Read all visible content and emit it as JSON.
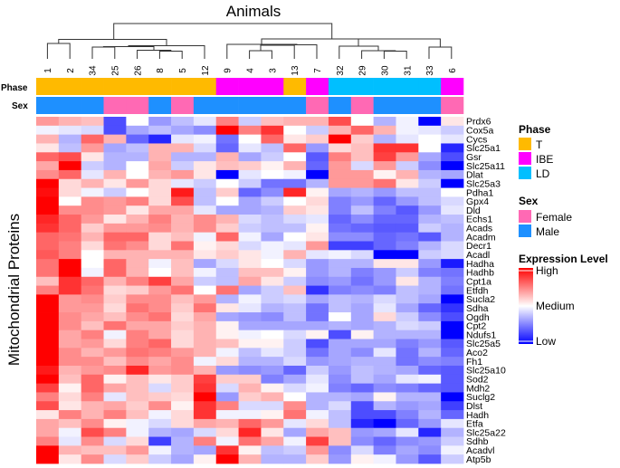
{
  "chart_data": {
    "type": "heatmap",
    "title": "Animals",
    "ylabel": "Mitochondrial Proteins",
    "columns": [
      "1",
      "2",
      "34",
      "25",
      "26",
      "8",
      "5",
      "12",
      "9",
      "4",
      "3",
      "13",
      "7",
      "32",
      "29",
      "30",
      "31",
      "33",
      "6"
    ],
    "annotations": {
      "phase_label": "Phase",
      "sex_label": "Sex",
      "phase": [
        "T",
        "T",
        "T",
        "T",
        "T",
        "T",
        "T",
        "T",
        "IBE",
        "IBE",
        "IBE",
        "T",
        "IBE",
        "LD",
        "LD",
        "LD",
        "LD",
        "LD",
        "IBE"
      ],
      "sex": [
        "Male",
        "Male",
        "Male",
        "Female",
        "Female",
        "Male",
        "Female",
        "Male",
        "Male",
        "Male",
        "Male",
        "Male",
        "Female",
        "Male",
        "Female",
        "Male",
        "Male",
        "Male",
        "Female"
      ]
    },
    "rows": [
      "Prdx6",
      "Cox5a",
      "Cycs",
      "Slc25a1",
      "Gsr",
      "Slc25a11",
      "Dlat",
      "Slc25a3",
      "Pdha1",
      "Gpx4",
      "Dld",
      "Echs1",
      "Acads",
      "Acadm",
      "Decr1",
      "Acadl",
      "Hadha",
      "Hadhb",
      "Cpt1a",
      "Etfdh",
      "Sucla2",
      "Sdha",
      "Ogdh",
      "Cpt2",
      "Ndufs1",
      "Slc25a5",
      "Aco2",
      "Fh1",
      "Slc25a10",
      "Sod2",
      "Mdh2",
      "Suclg2",
      "Dlst",
      "Hadh",
      "Etfa",
      "Slc25a22",
      "Sdhb",
      "Acadvl",
      "Atp5b"
    ],
    "value_range": [
      -1,
      1
    ],
    "values": [
      [
        0.4,
        0.3,
        0.25,
        -0.7,
        0,
        -0.4,
        -0.25,
        -0.1,
        0.5,
        -0.2,
        0.25,
        0.3,
        0.3,
        0.7,
        0,
        -0.3,
        -0.05,
        -1,
        0.1
      ],
      [
        -0.05,
        -0.1,
        -0.15,
        -0.7,
        -0.35,
        -0.25,
        -0.35,
        -0.45,
        1,
        0.5,
        0.8,
        0,
        -0.2,
        0.3,
        0.6,
        0.3,
        -0.05,
        -0.1,
        -0.2
      ],
      [
        0.3,
        -0.3,
        0.6,
        0.3,
        -0.6,
        -0.85,
        -0.1,
        -0.05,
        -0.55,
        0,
        0.6,
        0.1,
        0.2,
        1,
        0.2,
        -0.3,
        -0.1,
        0,
        -0.1
      ],
      [
        0.1,
        -0.25,
        0.4,
        -0.35,
        -0.25,
        0.3,
        0.3,
        -0.15,
        -0.6,
        -0.1,
        -0.25,
        0.6,
        -0.4,
        0.15,
        0.25,
        0.8,
        0.8,
        0,
        -0.85
      ],
      [
        0.6,
        0.7,
        0.1,
        -0.3,
        -0.3,
        0.3,
        -0.3,
        -0.3,
        0.3,
        -0.35,
        -0.2,
        0,
        -0.65,
        0.5,
        0.25,
        0.75,
        0.4,
        -0.35,
        -0.7
      ],
      [
        0.35,
        1,
        -0.2,
        -0.3,
        0,
        0.35,
        -0.2,
        0.1,
        0.25,
        0.2,
        0.05,
        0.3,
        -0.6,
        0.4,
        -0.15,
        0.4,
        -0.2,
        -0.45,
        -1
      ],
      [
        0.45,
        0.6,
        -0.1,
        0.3,
        0,
        0.3,
        0.4,
        0.1,
        -1,
        -0.1,
        0,
        -0.05,
        -1,
        0.4,
        0.4,
        0.05,
        0.3,
        -0.3,
        -0.35
      ],
      [
        1,
        0.15,
        0.3,
        0.1,
        0.4,
        0.15,
        -0.1,
        -0.2,
        0,
        -0.2,
        -0.55,
        -0.55,
        -0.3,
        0.4,
        0.4,
        0.55,
        0.1,
        -0.2,
        -1
      ],
      [
        0.95,
        0.15,
        -0.05,
        -0.2,
        0,
        0.15,
        0.9,
        -0.25,
        0.2,
        -0.6,
        -0.45,
        0.85,
        0.05,
        -0.35,
        -0.3,
        -0.4,
        -0.25,
        -0.25,
        0
      ],
      [
        1,
        0,
        0.45,
        0.4,
        0.5,
        0.15,
        0.7,
        -0.25,
        0,
        -0.35,
        -0.2,
        0,
        0.15,
        -0.5,
        -0.4,
        -0.6,
        -0.4,
        -0.25,
        -0.15
      ],
      [
        1,
        0.45,
        0.45,
        0.4,
        0.1,
        0.35,
        0.35,
        -0.1,
        -0.35,
        -0.35,
        -0.3,
        0.2,
        0.1,
        -0.5,
        -0.25,
        -0.5,
        -0.65,
        -0.4,
        -0.1
      ],
      [
        0.85,
        0.6,
        0.4,
        0.1,
        0.3,
        0.5,
        0.3,
        0.45,
        0.3,
        -0.15,
        -0.25,
        -0.15,
        -0.1,
        -0.6,
        -0.45,
        -0.6,
        -0.6,
        -0.3,
        -0.25
      ],
      [
        0.8,
        0.6,
        0.2,
        0.4,
        0.4,
        0.45,
        0.3,
        0.45,
        0.2,
        -0.2,
        -0.25,
        -0.25,
        0.05,
        -0.55,
        -0.6,
        -0.65,
        -0.65,
        -0.2,
        -0.3
      ],
      [
        0.6,
        0.55,
        0.3,
        0.6,
        0.6,
        0.15,
        0.25,
        -0.05,
        0.6,
        -0.05,
        -0.35,
        0,
        0.1,
        -0.45,
        -0.45,
        -0.6,
        -0.55,
        -0.65,
        -0.3
      ],
      [
        0.6,
        0.5,
        0.15,
        0.55,
        0.45,
        0.15,
        0.55,
        0.05,
        0.15,
        -0.15,
        -0.05,
        -0.1,
        0.4,
        -0.75,
        -0.75,
        -0.6,
        -0.5,
        -0.3,
        -0.15
      ],
      [
        0.65,
        0.5,
        0,
        0.3,
        0.3,
        0.3,
        0.3,
        0.1,
        0.2,
        0.1,
        -0.05,
        0.3,
        -0.1,
        -0.05,
        -0.15,
        -1,
        -1,
        -0.2,
        -0.15
      ],
      [
        0.55,
        1,
        0,
        0.6,
        0.3,
        -0.05,
        0.25,
        -0.35,
        -0.15,
        0.1,
        0,
        -0.15,
        -0.4,
        -0.3,
        -0.3,
        0.1,
        0.1,
        -0.4,
        -0.9
      ],
      [
        0.55,
        1,
        -0.05,
        0.6,
        0.3,
        0,
        0.25,
        -0.05,
        -0.25,
        0.25,
        0.25,
        0.05,
        -0.4,
        -0.3,
        -0.5,
        -0.4,
        -0.2,
        -0.5,
        -0.55
      ],
      [
        0.25,
        0.8,
        0.6,
        0.3,
        0.5,
        0.75,
        0.35,
        -0.2,
        -0.25,
        0.35,
        0.1,
        -0.2,
        -0.45,
        -0.4,
        -0.55,
        -0.4,
        0.1,
        -0.3,
        -0.5
      ],
      [
        0.5,
        0.8,
        0.55,
        0.15,
        0.2,
        0.4,
        0.55,
        0,
        0.55,
        -0.35,
        -0.2,
        0.25,
        -0.8,
        -0.5,
        -0.45,
        -0.5,
        -0.25,
        -0.3,
        -0.55
      ],
      [
        1,
        0.4,
        0.45,
        0.2,
        0.45,
        0.45,
        0.25,
        0.4,
        -0.3,
        -0.05,
        -0.2,
        -0.15,
        -0.35,
        -0.25,
        -0.3,
        -0.15,
        -0.25,
        -0.35,
        -1
      ],
      [
        1,
        0.4,
        0.4,
        0.15,
        0.55,
        0.45,
        0.2,
        0.55,
        0.1,
        -0.1,
        -0.3,
        -0.25,
        -0.55,
        -0.25,
        -0.35,
        -0.1,
        -0.35,
        -0.6,
        -0.8
      ],
      [
        1,
        0.45,
        0.35,
        0.25,
        0.45,
        0.55,
        0.15,
        0.35,
        -0.35,
        -0.4,
        -0.45,
        -0.25,
        -0.55,
        0,
        -0.35,
        0.15,
        -0.2,
        -0.45,
        -0.7
      ],
      [
        1,
        0.45,
        0.25,
        0.55,
        0.35,
        0.35,
        0.2,
        0.3,
        0.05,
        -0.35,
        -0.35,
        -0.35,
        -0.35,
        -0.3,
        -0.35,
        -0.3,
        -0.15,
        -0.2,
        -1
      ],
      [
        1,
        0.35,
        0.5,
        -0.05,
        0.5,
        0.35,
        0.15,
        0.3,
        0.05,
        -0.05,
        0,
        -0.15,
        0.05,
        -0.7,
        0.05,
        -0.3,
        -0.3,
        -0.3,
        -1
      ],
      [
        1,
        0.35,
        0.4,
        0.15,
        0.5,
        0.6,
        0.15,
        0.3,
        0.25,
        0.05,
        0.05,
        -0.2,
        -0.7,
        -0.35,
        -0.35,
        -0.35,
        -0.5,
        -0.4,
        -0.65
      ],
      [
        1,
        0.45,
        0.3,
        0.4,
        0.55,
        0.5,
        0.4,
        0.3,
        -0.05,
        -0.25,
        -0.1,
        -0.2,
        -0.55,
        -0.35,
        -0.45,
        -0.1,
        -0.55,
        -0.3,
        -0.6
      ],
      [
        1,
        0.45,
        0.45,
        0.25,
        0.45,
        0.35,
        0.45,
        -0.05,
        0.15,
        -0.3,
        -0.3,
        -0.15,
        -0.4,
        -0.35,
        -0.3,
        -0.3,
        -0.55,
        -0.45,
        -0.5
      ],
      [
        0.9,
        0.3,
        0.4,
        0.45,
        0.85,
        0.4,
        0.45,
        0.3,
        -0.4,
        -0.45,
        -0.4,
        -0.6,
        -0.2,
        -0.4,
        -0.25,
        -0.3,
        -0.35,
        -0.6,
        -0.65
      ],
      [
        1,
        0.25,
        0.6,
        0.05,
        0.25,
        0.1,
        0.2,
        0.75,
        0.2,
        0.2,
        -0.5,
        -0.35,
        -0.1,
        -0.45,
        -0.25,
        -0.35,
        -0.1,
        -0.05,
        -0.65
      ],
      [
        0.75,
        0.05,
        0.6,
        0.35,
        0.25,
        -0.15,
        0.2,
        0.8,
        -0.15,
        0.3,
        0.05,
        -0.15,
        -0.05,
        -0.5,
        -0.6,
        -0.45,
        -0.5,
        -0.6,
        -0.65
      ],
      [
        0.5,
        0.15,
        0.5,
        -0.1,
        0.25,
        0.2,
        0.15,
        1,
        -0.4,
        0.2,
        0.3,
        0,
        -0.3,
        -0.3,
        -0.35,
        0.05,
        -0.3,
        -0.3,
        -1
      ],
      [
        0.7,
        0.1,
        0.3,
        0.35,
        0.2,
        0.45,
        0.05,
        0.8,
        0.5,
        -0.15,
        -0.15,
        0.45,
        -0.3,
        -0.15,
        -0.7,
        -0.3,
        -0.4,
        -0.35,
        -0.75
      ],
      [
        0.1,
        0.5,
        0.3,
        0.5,
        0.25,
        -0.05,
        0.15,
        0.8,
        -0.05,
        -0.05,
        0.05,
        0.55,
        -0.05,
        -0.25,
        -0.7,
        -0.7,
        -0.5,
        -0.3,
        -0.6
      ],
      [
        0.35,
        0.25,
        0.45,
        0.05,
        -0.05,
        -0.15,
        0.15,
        0.35,
        0.3,
        0.6,
        0.4,
        -0.1,
        0.15,
        -0.25,
        -0.85,
        -1,
        -0.6,
        -0.4,
        -0.1
      ],
      [
        0.35,
        -0.05,
        0.7,
        0.5,
        -0.05,
        -0.3,
        -0.35,
        -0.15,
        0.15,
        0.85,
        0.1,
        -0.35,
        0.35,
        0.25,
        -0.4,
        -0.35,
        -0.1,
        -0.85,
        -0.3
      ],
      [
        0.5,
        -0.1,
        0.45,
        -0.15,
        0.15,
        -0.75,
        -0.3,
        0.5,
        -0.05,
        0.55,
        0.35,
        -0.05,
        0.75,
        0.25,
        -0.45,
        -0.6,
        -0.45,
        -0.4,
        -0.2
      ],
      [
        1,
        0.3,
        0.25,
        0.25,
        0.4,
        -0.05,
        -0.3,
        -0.35,
        0.8,
        0.05,
        -0.25,
        -0.2,
        0.4,
        -0.45,
        -0.15,
        -0.5,
        -0.35,
        -0.45,
        -0.05
      ],
      [
        1,
        0.1,
        0.45,
        -0.15,
        0.2,
        -0.2,
        -0.35,
        0.05,
        1,
        0.3,
        -0.3,
        -0.3,
        0.2,
        -0.4,
        0.05,
        -0.05,
        -0.4,
        -0.65,
        -0.2
      ]
    ],
    "legend": {
      "phase": {
        "title": "Phase",
        "items": [
          {
            "label": "T",
            "color": "#FFBA00"
          },
          {
            "label": "IBE",
            "color": "#FF00FF"
          },
          {
            "label": "LD",
            "color": "#00BFFF"
          }
        ]
      },
      "sex": {
        "title": "Sex",
        "items": [
          {
            "label": "Female",
            "color": "#FF69B4"
          },
          {
            "label": "Male",
            "color": "#1E90FF"
          }
        ]
      },
      "expression": {
        "title": "Expression Level",
        "high": "High",
        "medium": "Medium",
        "low": "Low",
        "colors": {
          "low": "#0000FF",
          "mid": "#FFFFFF",
          "high": "#FF0000"
        }
      }
    }
  }
}
